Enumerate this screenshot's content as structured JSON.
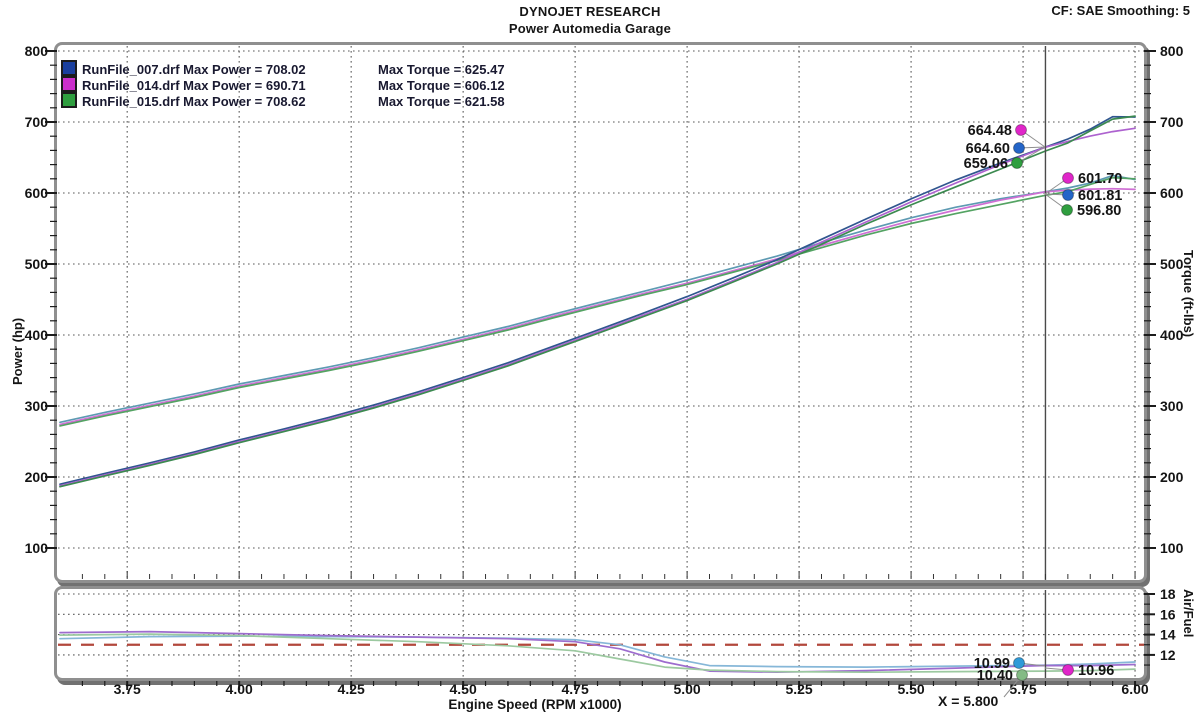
{
  "header": {
    "title": "DYNOJET RESEARCH",
    "subtitle": "Power Automedia Garage",
    "correction": "CF: SAE  Smoothing: 5"
  },
  "legend": {
    "rows": [
      {
        "swatch": "#1a3f9e",
        "file_label": "RunFile_007.drf Max Power = 708.02",
        "torque_label": "Max Torque = 625.47"
      },
      {
        "swatch": "#cc2fcc",
        "file_label": "RunFile_014.drf Max Power = 690.71",
        "torque_label": "Max Torque = 606.12"
      },
      {
        "swatch": "#2f9e3f",
        "file_label": "RunFile_015.drf Max Power = 708.62",
        "torque_label": "Max Torque = 621.58"
      }
    ]
  },
  "axis_titles": {
    "left": "Power (hp)",
    "right": "Torque (ft-lbs)",
    "af": "Air/Fuel",
    "x": "Engine Speed (RPM x1000)"
  },
  "cursor": {
    "x": 5.8,
    "label": "X = 5.800"
  },
  "chart_data": [
    {
      "type": "line",
      "id": "power-torque",
      "xlabel": "Engine Speed (RPM x1000)",
      "ylabel_left": "Power (hp)",
      "ylabel_right": "Torque (ft-lbs)",
      "xlim": [
        3.6,
        6.02
      ],
      "ylim": [
        57,
        810
      ],
      "grid": true,
      "x_ticks": [
        "3.75",
        "4.00",
        "4.25",
        "4.50",
        "4.75",
        "5.00",
        "5.25",
        "5.50",
        "5.75",
        "6.00"
      ],
      "y_ticks": [
        "100",
        "200",
        "300",
        "400",
        "500",
        "600",
        "700",
        "800"
      ],
      "x": [
        3.6,
        3.7,
        3.8,
        3.9,
        4.0,
        4.1,
        4.2,
        4.3,
        4.4,
        4.5,
        4.6,
        4.7,
        4.8,
        4.9,
        5.0,
        5.1,
        5.2,
        5.3,
        5.4,
        5.5,
        5.6,
        5.7,
        5.8,
        5.85,
        5.9,
        5.95,
        6.0
      ],
      "series": [
        {
          "name": "runfile-007-torque",
          "unit": "ft-lbs",
          "color": "#5d9ab2",
          "values": [
            277,
            291,
            304,
            317,
            331,
            343,
            355,
            368,
            382,
            397,
            412,
            429,
            445,
            461,
            477,
            494,
            511,
            530,
            548,
            565,
            580,
            592,
            601.8,
            607,
            614,
            624.5,
            619
          ]
        },
        {
          "name": "runfile-014-torque",
          "unit": "ft-lbs",
          "color": "#cf6fd4",
          "values": [
            274,
            288,
            301,
            314,
            328,
            340,
            352,
            365,
            379,
            394,
            409,
            426,
            442,
            458,
            473,
            490,
            507,
            526,
            544,
            561,
            576,
            590,
            601.7,
            604,
            605.5,
            606,
            605
          ]
        },
        {
          "name": "runfile-015-torque",
          "unit": "ft-lbs",
          "color": "#54a363",
          "values": [
            272,
            286,
            299,
            312,
            326,
            338,
            350,
            363,
            377,
            392,
            407,
            424,
            440,
            456,
            471,
            488,
            505,
            523,
            541,
            557,
            571,
            584,
            596.8,
            602,
            612,
            621.5,
            620
          ]
        },
        {
          "name": "runfile-007-power",
          "unit": "hp",
          "color": "#30568f",
          "values": [
            189.9,
            205.0,
            219.9,
            235.4,
            252.1,
            267.7,
            283.9,
            301.3,
            320.0,
            340.1,
            360.9,
            383.9,
            406.7,
            430.1,
            454.1,
            479.7,
            505.9,
            534.8,
            563.5,
            591.7,
            618.4,
            642.4,
            664.6,
            676.1,
            689.8,
            707.5,
            707.1
          ]
        },
        {
          "name": "runfile-014-power",
          "unit": "hp",
          "color": "#ad62cf",
          "values": [
            187.8,
            202.9,
            217.8,
            233.2,
            249.8,
            265.4,
            281.5,
            298.8,
            317.5,
            337.6,
            358.2,
            381.2,
            404.0,
            427.3,
            450.3,
            475.8,
            501.9,
            530.8,
            559.3,
            587.5,
            614.1,
            640.3,
            664.5,
            672.7,
            680.2,
            686.5,
            691.1
          ]
        },
        {
          "name": "runfile-015-power",
          "unit": "hp",
          "color": "#3c8a50",
          "values": [
            186.4,
            201.5,
            216.3,
            231.7,
            248.3,
            263.9,
            279.9,
            297.2,
            315.8,
            335.9,
            356.5,
            379.4,
            402.1,
            425.4,
            448.4,
            473.9,
            499.9,
            527.8,
            556.3,
            583.3,
            608.8,
            633.8,
            659.1,
            670.5,
            687.5,
            704.1,
            708.3
          ]
        }
      ]
    },
    {
      "type": "line",
      "id": "air-fuel",
      "ylabel_right": "Air/Fuel",
      "xlim": [
        3.6,
        6.02
      ],
      "ylim": [
        9.7,
        18.4
      ],
      "grid": true,
      "y_ticks": [
        "12",
        "14",
        "16",
        "18"
      ],
      "target_afr": 13.0,
      "target_color": "#b2483c",
      "x": [
        3.6,
        3.8,
        4.0,
        4.2,
        4.4,
        4.6,
        4.75,
        4.85,
        4.95,
        5.05,
        5.2,
        5.4,
        5.6,
        5.8,
        5.9,
        6.0
      ],
      "series": [
        {
          "name": "runfile-007-airfuel",
          "unit": "afr",
          "color": "#86b7d8",
          "values": [
            13.6,
            13.8,
            13.85,
            13.8,
            13.75,
            13.65,
            13.5,
            13.0,
            11.8,
            10.95,
            10.85,
            10.8,
            10.9,
            10.99,
            11.1,
            11.3
          ]
        },
        {
          "name": "runfile-014-airfuel",
          "unit": "afr",
          "color": "#9d6cce",
          "values": [
            14.2,
            14.3,
            14.1,
            13.9,
            13.75,
            13.6,
            13.3,
            12.6,
            11.3,
            10.4,
            10.3,
            10.45,
            10.7,
            10.96,
            10.95,
            11.05
          ]
        },
        {
          "name": "runfile-015-airfuel",
          "unit": "afr",
          "color": "#9cc9a0",
          "values": [
            13.95,
            14.05,
            13.9,
            13.6,
            13.3,
            12.9,
            12.4,
            11.6,
            10.8,
            10.5,
            10.35,
            10.3,
            10.35,
            10.4,
            10.45,
            10.6
          ]
        }
      ]
    }
  ],
  "annotations": {
    "power_at_cursor": [
      {
        "text": "664.48",
        "color": "#e026c9",
        "dot": [
          1021,
          130
        ]
      },
      {
        "text": "664.60",
        "color": "#2465c8",
        "dot": [
          1019,
          148
        ]
      },
      {
        "text": "659.06",
        "color": "#2f9e3f",
        "dot": [
          1017,
          163
        ]
      }
    ],
    "power_target": [
      1045,
      147
    ],
    "torque_at_cursor": [
      {
        "text": "601.70",
        "color": "#e026c9",
        "dot": [
          1068,
          178
        ]
      },
      {
        "text": "601.81",
        "color": "#2465c8",
        "dot": [
          1068,
          195
        ]
      },
      {
        "text": "596.80",
        "color": "#2f9e3f",
        "dot": [
          1067,
          210
        ]
      }
    ],
    "torque_target": [
      1045,
      194
    ],
    "af_at_cursor": [
      {
        "text": "10.99",
        "color": "#2e9ad8",
        "dot": [
          1019,
          663
        ],
        "side": "left",
        "leader_to": [
          1045,
          666
        ]
      },
      {
        "text": "10.40",
        "color": "#83bb85",
        "dot": [
          1022,
          675
        ],
        "side": "left",
        "leader_to": [
          1004,
          697
        ]
      },
      {
        "text": "10.96",
        "color": "#e026c9",
        "dot": [
          1068,
          670
        ],
        "side": "right",
        "leader_to": [
          1045,
          668
        ]
      }
    ]
  }
}
